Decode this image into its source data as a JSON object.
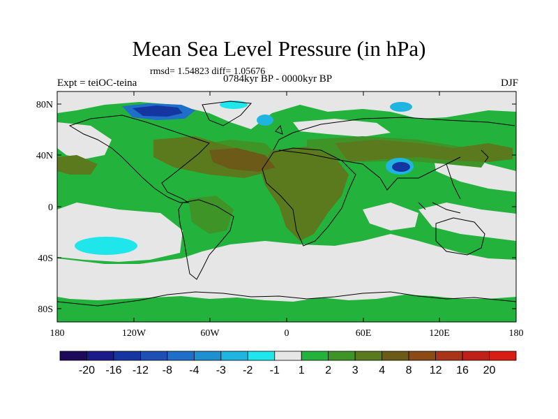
{
  "header": {
    "title": "Mean Sea Level Pressure (in hPa)",
    "stats": "rmsd= 1.54823 diff= 1.05676",
    "period": "0784kyr BP - 0000kyr BP",
    "experiment": "Expt = teiOC-teina",
    "season": "DJF"
  },
  "axes": {
    "y_ticks": [
      "80N",
      "40N",
      "0",
      "40S",
      "80S"
    ],
    "x_ticks": [
      "180",
      "120W",
      "60W",
      "0",
      "60E",
      "120E",
      "180"
    ]
  },
  "colorbar": {
    "labels": [
      "-20",
      "-16",
      "-12",
      "-8",
      "-4",
      "-3",
      "-2",
      "-1",
      "1",
      "2",
      "3",
      "4",
      "8",
      "12",
      "16",
      "20"
    ],
    "colors": [
      "#1e0a5a",
      "#1a1a8a",
      "#1535a0",
      "#1e4fb4",
      "#1f6ec8",
      "#1e90d2",
      "#20b4e0",
      "#1ee6ea",
      "#e6e6e6",
      "#23b33c",
      "#3f9428",
      "#5b7a1e",
      "#6b5a18",
      "#8b4a16",
      "#a8341a",
      "#c0201a",
      "#d81e14"
    ]
  },
  "colors": {
    "neutral": "#e6e6e6",
    "light_green": "#23b33c",
    "mid_green": "#3f9428",
    "olive": "#5b7a1e",
    "brown": "#6b5a18",
    "cyan": "#1ee6ea",
    "blue": "#1f6ec8",
    "navy": "#1535a0"
  }
}
